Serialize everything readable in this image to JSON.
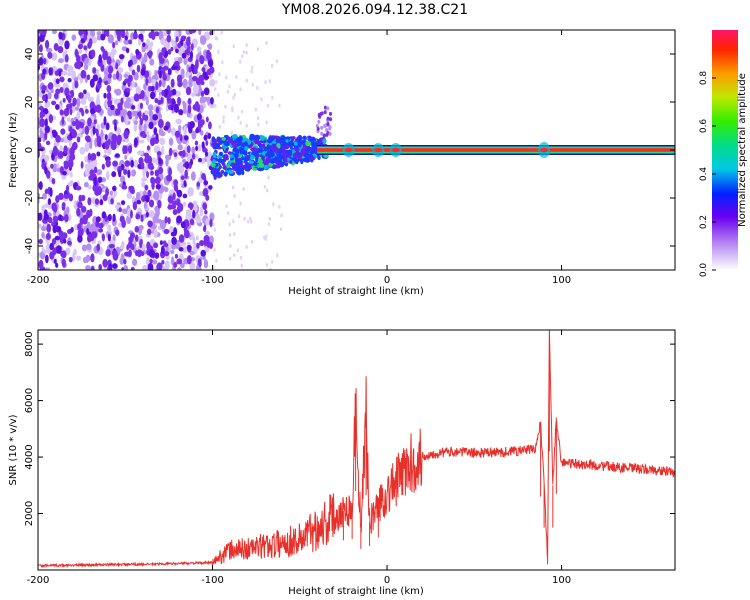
{
  "title": "YM08.2026.094.12.38.C21",
  "chart_data": [
    {
      "type": "heatmap",
      "name": "spectrogram",
      "xlabel": "Height of straight line (km)",
      "ylabel": "Frequency (Hz)",
      "xlim": [
        -200,
        165
      ],
      "ylim": [
        -50,
        50
      ],
      "xticks": [
        -200,
        -100,
        0,
        100
      ],
      "yticks": [
        -40,
        -20,
        0,
        20,
        40
      ],
      "colorbar": {
        "label": "Normalized spectral amplitude",
        "range": [
          0,
          1
        ],
        "ticks": [
          "0.0",
          "0.2",
          "0.4",
          "0.6",
          "0.8"
        ]
      },
      "regions": [
        {
          "x_range": [
            -200,
            -100
          ],
          "f_range": [
            -50,
            50
          ],
          "level": "low",
          "description": "scattered noise"
        },
        {
          "x_range": [
            -100,
            -40
          ],
          "f_range": [
            -12,
            8
          ],
          "level": "medium",
          "description": "broad cluster"
        },
        {
          "x_range": [
            -40,
            165
          ],
          "f_center": 0,
          "level": "high",
          "description": "narrow line at 0 Hz"
        }
      ]
    },
    {
      "type": "line",
      "name": "snr",
      "xlabel": "Height of straight line (km)",
      "ylabel": "SNR (10 * v/v)",
      "xlim": [
        -200,
        165
      ],
      "ylim": [
        0,
        8500
      ],
      "xticks": [
        -200,
        -100,
        0,
        100
      ],
      "yticks": [
        2000,
        4000,
        6000,
        8000
      ],
      "color": "#e8302b",
      "series": [
        {
          "name": "SNR",
          "x": [
            -200,
            -180,
            -160,
            -140,
            -120,
            -100,
            -95,
            -90,
            -80,
            -70,
            -60,
            -50,
            -45,
            -40,
            -35,
            -30,
            -25,
            -20,
            -18,
            -15,
            -12,
            -10,
            -5,
            0,
            5,
            10,
            15,
            20,
            25,
            30,
            40,
            50,
            60,
            70,
            80,
            85,
            88,
            90,
            92,
            93,
            95,
            97,
            100,
            110,
            120,
            130,
            140,
            150,
            160,
            165
          ],
          "y": [
            150,
            170,
            190,
            200,
            230,
            260,
            500,
            700,
            750,
            850,
            950,
            1100,
            1300,
            1500,
            1700,
            1900,
            2100,
            2200,
            5600,
            1500,
            5300,
            1700,
            2300,
            2700,
            3100,
            3500,
            3800,
            4000,
            4100,
            4150,
            4200,
            4150,
            4150,
            4200,
            4250,
            4300,
            5200,
            3000,
            400,
            8400,
            3000,
            5400,
            3800,
            3750,
            3700,
            3650,
            3600,
            3550,
            3500,
            3400
          ]
        }
      ]
    }
  ]
}
